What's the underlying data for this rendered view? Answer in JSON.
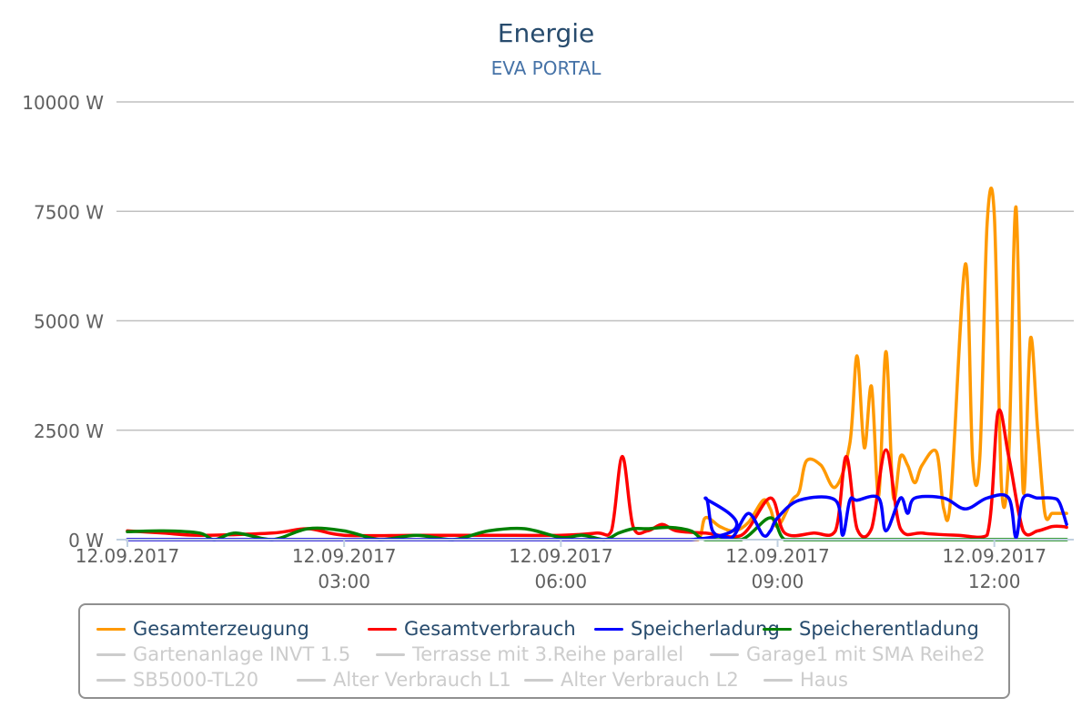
{
  "title": "Energie",
  "subtitle": "EVA PORTAL",
  "chart_data": {
    "type": "line",
    "title": "Energie",
    "subtitle": "EVA PORTAL",
    "ylim": [
      0,
      10000
    ],
    "yticks": [
      {
        "value": 0,
        "label": "0 W"
      },
      {
        "value": 2500,
        "label": "2500 W"
      },
      {
        "value": 5000,
        "label": "5000 W"
      },
      {
        "value": 7500,
        "label": "7500 W"
      },
      {
        "value": 10000,
        "label": "10000 W"
      }
    ],
    "x_unit": "hours since 00:00 on 12.09.2017",
    "xlim": [
      0,
      13.1
    ],
    "xticks": [
      {
        "value": 0,
        "date": "12.09.2017",
        "time": ""
      },
      {
        "value": 3,
        "date": "12.09.2017",
        "time": "03:00"
      },
      {
        "value": 6,
        "date": "12.09.2017",
        "time": "06:00"
      },
      {
        "value": 9,
        "date": "12.09.2017",
        "time": "09:00"
      },
      {
        "value": 12,
        "date": "12.09.2017",
        "time": "12:00"
      }
    ],
    "grid": true,
    "legend_position": "bottom",
    "series": [
      {
        "name": "Gesamterzeugung",
        "color": "#ff9900",
        "visible": true,
        "x": [
          0,
          5.9,
          6.6,
          6.9,
          7.3,
          7.6,
          7.9,
          8.0,
          8.2,
          8.4,
          8.6,
          8.8,
          8.9,
          9.0,
          9.2,
          9.3,
          9.4,
          9.6,
          9.8,
          10.0,
          10.1,
          10.2,
          10.3,
          10.4,
          10.5,
          10.6,
          10.7,
          10.8,
          10.9,
          11.0,
          11.2,
          11.3,
          11.4,
          11.6,
          11.7,
          11.8,
          11.9,
          12.0,
          12.1,
          12.2,
          12.3,
          12.4,
          12.5,
          12.6,
          12.7,
          12.8,
          12.9,
          13.0
        ],
        "y": [
          0,
          0,
          0,
          0,
          0,
          0,
          0,
          500,
          300,
          200,
          400,
          900,
          700,
          300,
          900,
          1100,
          1800,
          1700,
          1200,
          2200,
          4200,
          2100,
          3500,
          1000,
          4300,
          1000,
          1900,
          1700,
          1300,
          1700,
          2000,
          700,
          1000,
          6300,
          1800,
          1900,
          7200,
          7400,
          1200,
          1900,
          7600,
          1100,
          4600,
          2500,
          600,
          600,
          600,
          600
        ]
      },
      {
        "name": "Gesamtverbrauch",
        "color": "#ff0000",
        "visible": true,
        "x": [
          0,
          0.5,
          1.0,
          2.0,
          2.5,
          3.0,
          4.0,
          5.0,
          6.0,
          6.5,
          6.7,
          6.85,
          7.0,
          7.2,
          7.4,
          7.6,
          8.0,
          8.5,
          8.9,
          9.1,
          9.5,
          9.8,
          9.95,
          10.1,
          10.3,
          10.5,
          10.7,
          11.0,
          11.5,
          11.9,
          12.05,
          12.2,
          12.4,
          12.6,
          12.8,
          12.95,
          13.0
        ],
        "y": [
          200,
          150,
          100,
          150,
          250,
          100,
          100,
          100,
          100,
          150,
          200,
          1900,
          300,
          200,
          350,
          200,
          150,
          100,
          950,
          150,
          150,
          200,
          1900,
          250,
          250,
          2050,
          250,
          150,
          100,
          100,
          2900,
          1900,
          200,
          200,
          300,
          300,
          280
        ]
      },
      {
        "name": "Speicherladung",
        "color": "#0000ff",
        "visible": true,
        "x": [
          0,
          7.8,
          8.0,
          8.1,
          8.3,
          8.4,
          8.6,
          8.8,
          8.9,
          9.0,
          9.3,
          9.8,
          9.9,
          10.0,
          10.1,
          10.4,
          10.5,
          10.7,
          10.8,
          10.9,
          11.3,
          11.6,
          11.9,
          12.2,
          12.3,
          12.4,
          12.6,
          12.8,
          12.9,
          13.0
        ],
        "y": [
          0,
          0,
          950,
          200,
          50,
          100,
          600,
          100,
          200,
          500,
          900,
          900,
          100,
          900,
          900,
          950,
          200,
          950,
          600,
          950,
          950,
          700,
          950,
          950,
          50,
          950,
          950,
          950,
          850,
          350
        ]
      },
      {
        "name": "Speicherentladung",
        "color": "#008000",
        "visible": true,
        "x": [
          0,
          0.5,
          1.0,
          1.2,
          1.5,
          2.0,
          2.5,
          3.0,
          3.5,
          4.0,
          4.5,
          5.0,
          5.5,
          6.0,
          6.3,
          6.6,
          6.8,
          7.0,
          7.2,
          7.5,
          7.8,
          8.0,
          8.5,
          8.9,
          9.1,
          9.5,
          13.0
        ],
        "y": [
          180,
          200,
          150,
          0,
          150,
          0,
          250,
          200,
          0,
          100,
          0,
          200,
          250,
          50,
          100,
          0,
          150,
          250,
          250,
          280,
          200,
          0,
          0,
          500,
          0,
          0,
          0
        ]
      },
      {
        "name": "Gartenanlage INVT 1.5",
        "color": "#cccccc",
        "visible": false
      },
      {
        "name": "Terrasse mit 3.Reihe parallel",
        "color": "#cccccc",
        "visible": false
      },
      {
        "name": "Garage1 mit SMA Reihe2",
        "color": "#cccccc",
        "visible": false
      },
      {
        "name": "SB5000-TL20",
        "color": "#cccccc",
        "visible": false
      },
      {
        "name": "Alter Verbrauch L1",
        "color": "#cccccc",
        "visible": false
      },
      {
        "name": "Alter Verbrauch L2",
        "color": "#cccccc",
        "visible": false
      },
      {
        "name": "Haus",
        "color": "#cccccc",
        "visible": false
      }
    ]
  },
  "legend": {
    "items": [
      {
        "label": "Gesamterzeugung",
        "color": "#ff9900",
        "active": true
      },
      {
        "label": "Gesamtverbrauch",
        "color": "#ff0000",
        "active": true
      },
      {
        "label": "Speicherladung",
        "color": "#0000ff",
        "active": true
      },
      {
        "label": "Speicherentladung",
        "color": "#008000",
        "active": true
      },
      {
        "label": "Gartenanlage INVT 1.5",
        "color": "#cccccc",
        "active": false
      },
      {
        "label": "Terrasse mit 3.Reihe parallel",
        "color": "#cccccc",
        "active": false
      },
      {
        "label": "Garage1 mit SMA Reihe2",
        "color": "#cccccc",
        "active": false
      },
      {
        "label": "SB5000-TL20",
        "color": "#cccccc",
        "active": false
      },
      {
        "label": "Alter Verbrauch L1",
        "color": "#cccccc",
        "active": false
      },
      {
        "label": "Alter Verbrauch L2",
        "color": "#cccccc",
        "active": false
      },
      {
        "label": "Haus",
        "color": "#cccccc",
        "active": false
      }
    ]
  }
}
